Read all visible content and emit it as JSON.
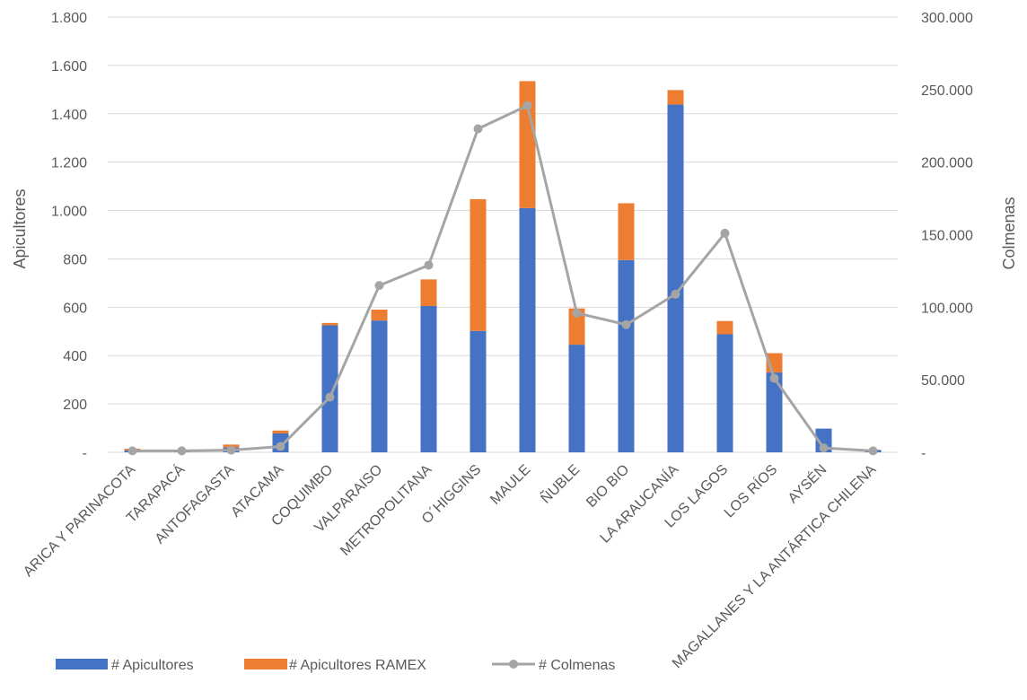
{
  "chart_data": {
    "type": "bar",
    "categories": [
      "ARICA Y PARINACOTA",
      "TARAPACÁ",
      "ANTOFAGASTA",
      "ATACAMA",
      "COQUIMBO",
      "VALPARAISO",
      "METROPOLITANA",
      "O´HIGGINS",
      "MAULE",
      "ÑUBLE",
      "BIO BIO",
      "LA ARAUCANÍA",
      "LOS LAGOS",
      "LOS RÍOS",
      "AYSÉN",
      "MAGALLANES Y LA ANTÁRTICA CHILENA"
    ],
    "series": [
      {
        "name": "# Apicultores",
        "kind": "bar",
        "axis": "left",
        "color": "#4472C4",
        "values": [
          8,
          3,
          20,
          78,
          525,
          545,
          605,
          502,
          1010,
          445,
          795,
          1438,
          488,
          330,
          98,
          10
        ]
      },
      {
        "name": "# Apicultores RAMEX",
        "kind": "bar-stacked",
        "axis": "left",
        "color": "#ED7D31",
        "values": [
          7,
          2,
          12,
          12,
          10,
          45,
          110,
          545,
          525,
          150,
          235,
          60,
          55,
          80,
          0,
          0
        ]
      },
      {
        "name": "# Colmenas",
        "kind": "line",
        "axis": "right",
        "color": "#A5A5A5",
        "values": [
          1000,
          1000,
          1500,
          4000,
          38000,
          115000,
          129000,
          223000,
          239000,
          96000,
          88000,
          109000,
          151000,
          51000,
          3000,
          1000
        ]
      }
    ],
    "ylabel": "Apicultores",
    "y2label": "Colmenas",
    "ylim": [
      0,
      1800
    ],
    "y2lim": [
      0,
      300000
    ],
    "yticks": [
      "-",
      "200",
      "400",
      "600",
      "800",
      "1.000",
      "1.200",
      "1.400",
      "1.600",
      "1.800"
    ],
    "y2ticks": [
      "-",
      "50.000",
      "100.000",
      "150.000",
      "200.000",
      "250.000",
      "300.000"
    ],
    "grid": true,
    "legend": "bottom"
  }
}
